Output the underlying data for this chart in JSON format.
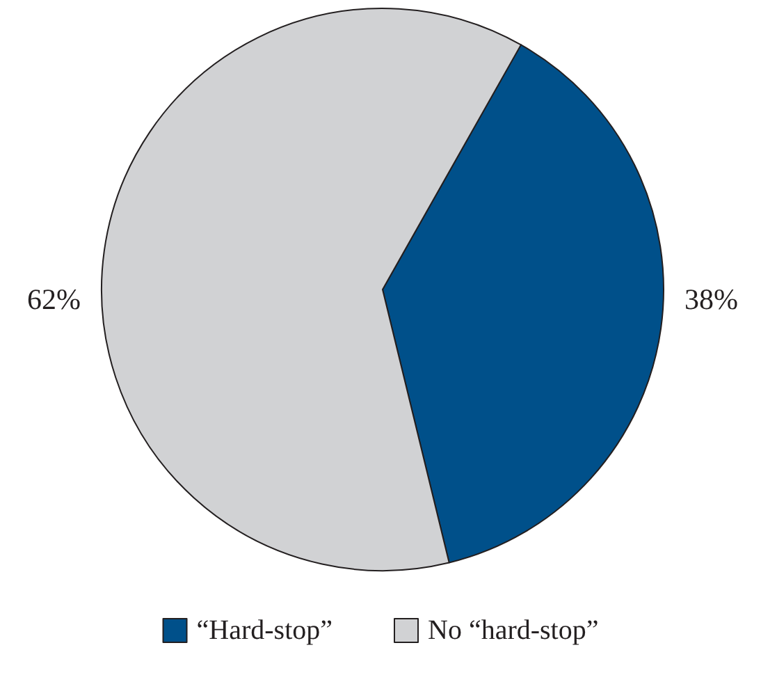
{
  "chart_data": {
    "type": "pie",
    "categories": [
      "“Hard-stop”",
      "No “hard-stop”"
    ],
    "values": [
      38,
      62
    ],
    "colors": [
      "#00508a",
      "#d1d2d4"
    ],
    "value_labels": [
      "38%",
      "62%"
    ],
    "legend": "bottom"
  }
}
